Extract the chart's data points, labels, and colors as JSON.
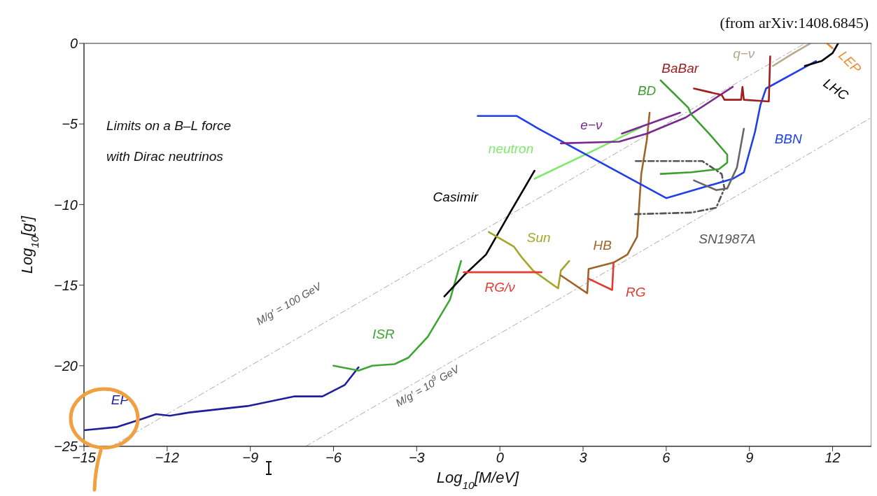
{
  "chart_data": {
    "type": "line",
    "title": "Limits on a B–L force\nwith Dirac neutrinos",
    "subtitle": "(from arXiv:1408.6845)",
    "xlabel": "Log$_{10}$[M/eV]",
    "ylabel": "Log$_{10}$[g′]",
    "xlim": [
      -15,
      13.4
    ],
    "ylim": [
      -25,
      0
    ],
    "xticks": [
      -15,
      -12,
      -9,
      -6,
      -3,
      0,
      3,
      6,
      9,
      12
    ],
    "yticks": [
      -25,
      -20,
      -15,
      -10,
      -5,
      0
    ],
    "grid": false,
    "series": [
      {
        "color": "#aaaaaa",
        "line_style": "dashed",
        "x": [
          -14,
          11
        ],
        "values": [
          -25,
          0
        ]
      },
      {
        "color": "#aaaaaa",
        "line_style": "dashed",
        "x": [
          -7,
          13.4
        ],
        "values": [
          -25,
          -4.6
        ]
      },
      {
        "name": "EP",
        "color": "#1f1f9e",
        "x": [
          -15,
          -13.8,
          -12.9,
          -12.4,
          -11.9,
          -11.2,
          -9.1,
          -7.4,
          -6.4,
          -5.6,
          -5.1
        ],
        "values": [
          -24,
          -23.8,
          -23.3,
          -23,
          -23.1,
          -22.9,
          -22.5,
          -21.9,
          -21.9,
          -21.2,
          -20.1
        ]
      },
      {
        "name": "ISR",
        "color": "#3fa535",
        "x": [
          -6,
          -5.1,
          -4.6,
          -3.8,
          -3.3,
          -2.6,
          -1.8,
          -1.4
        ],
        "values": [
          -20,
          -20.3,
          -20,
          -19.9,
          -19.5,
          -18.2,
          -15.9,
          -13.5
        ]
      },
      {
        "name": "Casimir",
        "color": "#000000",
        "x": [
          -2,
          -1.3,
          -0.5,
          0.4,
          1.25
        ],
        "values": [
          -15.7,
          -14.4,
          -13.1,
          -10.4,
          -7.9
        ]
      },
      {
        "name": "neutron",
        "color": "#80e86a",
        "x": [
          1.25,
          3.2,
          5.1
        ],
        "values": [
          -8.4,
          -6.8,
          -5.2
        ]
      },
      {
        "name": "Sun",
        "color": "#a5a52a",
        "x": [
          -0.4,
          0.5,
          0.8,
          1.2,
          2.1,
          2.2,
          2.5
        ],
        "values": [
          -11.7,
          -12.6,
          -13.3,
          -14.1,
          -15.2,
          -14.1,
          -13.5
        ]
      },
      {
        "name": "RG/ν",
        "color": "#e83a30",
        "x": [
          -1.3,
          1.5
        ],
        "values": [
          -14.2,
          -14.2
        ]
      },
      {
        "name": "HB",
        "color": "#a0642a",
        "x": [
          2.2,
          3.15,
          3.2,
          4.1,
          4.6,
          4.95,
          5.1,
          5.3,
          5.4
        ],
        "values": [
          -14.4,
          -15.5,
          -14,
          -13.6,
          -13.1,
          -12,
          -8.1,
          -6,
          -4.3
        ]
      },
      {
        "name": "RG",
        "color": "#e03c30",
        "x": [
          3.2,
          4.05,
          4.1
        ],
        "values": [
          -14.6,
          -15.3,
          -13.6
        ]
      },
      {
        "name": "SN1987A",
        "color": "#555555",
        "line_style": "dashed",
        "x": [
          4.9,
          7.3,
          8,
          8.1,
          7.8,
          6.9,
          4.8
        ],
        "values": [
          -7.3,
          -7.3,
          -8.1,
          -9,
          -10.2,
          -10.5,
          -10.6
        ]
      },
      {
        "name": "BBN",
        "color": "#1f3fe8",
        "x": [
          -0.8,
          0.6,
          1.4,
          6,
          8.4,
          8.8,
          9.2,
          9.4,
          9.6,
          11.4
        ],
        "values": [
          -4.5,
          -4.5,
          -5.3,
          -9.6,
          -8.4,
          -8,
          -5.5,
          -3.8,
          -2.8,
          -1.1
        ]
      },
      {
        "name": "e−ν",
        "color": "#7a2a8f",
        "x": [
          2.2,
          4.3,
          5.3,
          6.7,
          8.4
        ],
        "values": [
          -6.2,
          -6.1,
          -5.6,
          -4.6,
          -2.7
        ]
      },
      {
        "name": "BD",
        "color": "#3e9e30",
        "x": [
          5.8,
          6.8,
          6.9,
          7.6,
          8.2,
          8.2,
          7.9,
          6.9,
          5.8
        ],
        "values": [
          -2.3,
          -4,
          -4.4,
          -5.7,
          -6.9,
          -7.4,
          -7.8,
          -8,
          -8.1
        ]
      },
      {
        "name": "BaBar",
        "color": "#a01e1e",
        "x": [
          7,
          7.5,
          8,
          8.1,
          8.7,
          8.75,
          8.8,
          9.7,
          9.75
        ],
        "values": [
          -2.8,
          -3,
          -3.2,
          -3.5,
          -3.5,
          -2.7,
          -3.5,
          -3.6,
          -0.8
        ]
      },
      {
        "name": "q−ν",
        "color": "#b8a890",
        "x": [
          9.85,
          10.5,
          11.2
        ],
        "values": [
          -1.4,
          -0.7,
          0
        ]
      },
      {
        "name": "LEP",
        "color": "#f08a2a",
        "x": [
          11.8,
          12
        ],
        "values": [
          0,
          -0.3
        ]
      },
      {
        "name": "LHC",
        "color": "#000000",
        "x": [
          11,
          11.6,
          12,
          12.2
        ],
        "values": [
          -1.4,
          -1.1,
          -0.6,
          0
        ]
      },
      {
        "color": "#7a2a8f",
        "x": [
          4.4,
          6.5
        ],
        "values": [
          -5.6,
          -4.3
        ]
      },
      {
        "color": "#666666",
        "x": [
          7,
          7.8,
          8.2,
          8.55,
          8.8
        ],
        "values": [
          -8.5,
          -9.1,
          -9,
          -7.7,
          -5.3
        ]
      }
    ],
    "annotations": [
      "M/g′ = 100 GeV",
      "M/g′ = 10$^{9}$ GeV"
    ]
  }
}
